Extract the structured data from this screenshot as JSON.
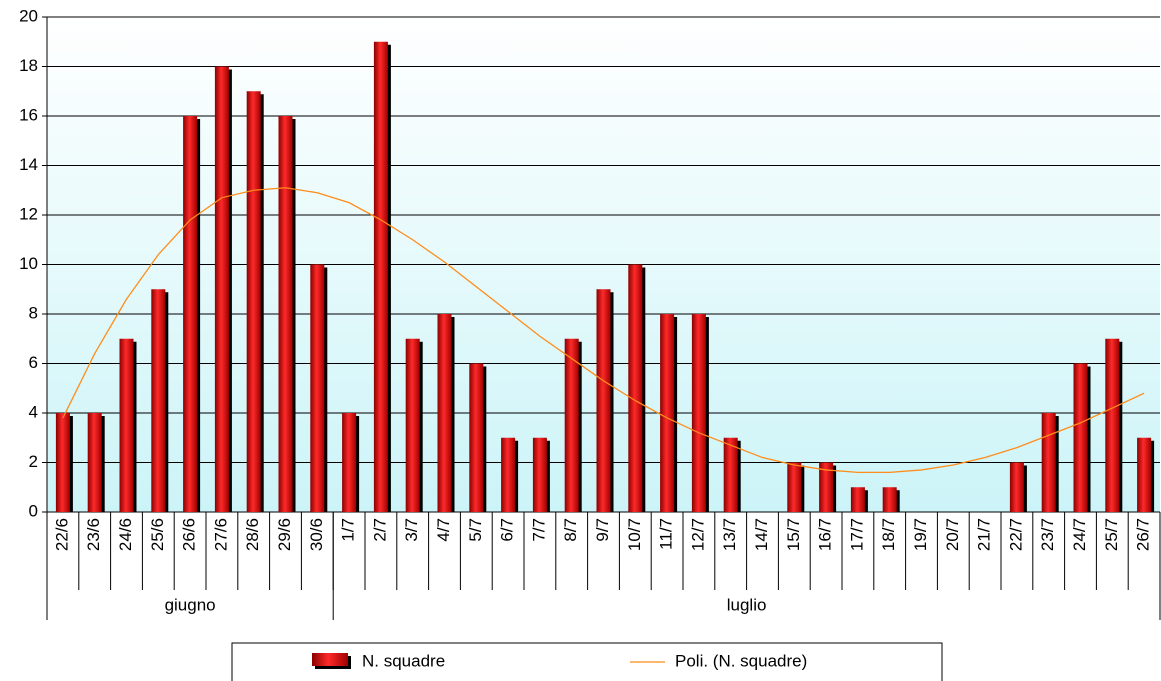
{
  "chart_data": {
    "type": "bar",
    "categories": [
      "22/6",
      "23/6",
      "24/6",
      "25/6",
      "26/6",
      "27/6",
      "28/6",
      "29/6",
      "30/6",
      "1/7",
      "2/7",
      "3/7",
      "4/7",
      "5/7",
      "6/7",
      "7/7",
      "8/7",
      "9/7",
      "10/7",
      "11/7",
      "12/7",
      "13/7",
      "14/7",
      "15/7",
      "16/7",
      "17/7",
      "18/7",
      "19/7",
      "20/7",
      "21/7",
      "22/7",
      "23/7",
      "24/7",
      "25/7",
      "26/7"
    ],
    "groups": [
      {
        "name": "giugno",
        "size": 9
      },
      {
        "name": "luglio",
        "size": 26
      }
    ],
    "series": [
      {
        "name": "N. squadre",
        "type": "bar",
        "color": "#ff0000",
        "values": [
          4,
          4,
          7,
          9,
          16,
          18,
          17,
          16,
          10,
          4,
          19,
          7,
          8,
          6,
          3,
          3,
          7,
          9,
          10,
          8,
          8,
          3,
          0,
          2,
          2,
          1,
          1,
          0,
          0,
          0,
          2,
          4,
          6,
          7,
          3
        ]
      },
      {
        "name": "Poli. (N. squadre)",
        "type": "line",
        "color": "#ff8c1a",
        "values": [
          3.8,
          6.4,
          8.6,
          10.4,
          11.8,
          12.7,
          13.0,
          13.1,
          12.9,
          12.5,
          11.8,
          11.0,
          10.1,
          9.1,
          8.1,
          7.1,
          6.2,
          5.3,
          4.5,
          3.8,
          3.2,
          2.7,
          2.2,
          1.9,
          1.7,
          1.6,
          1.6,
          1.7,
          1.9,
          2.2,
          2.6,
          3.1,
          3.6,
          4.2,
          4.8
        ]
      }
    ],
    "ylim": [
      0,
      20
    ],
    "yticks": [
      0,
      2,
      4,
      6,
      8,
      10,
      12,
      14,
      16,
      18,
      20
    ],
    "grid": true,
    "legend": "bottom"
  }
}
